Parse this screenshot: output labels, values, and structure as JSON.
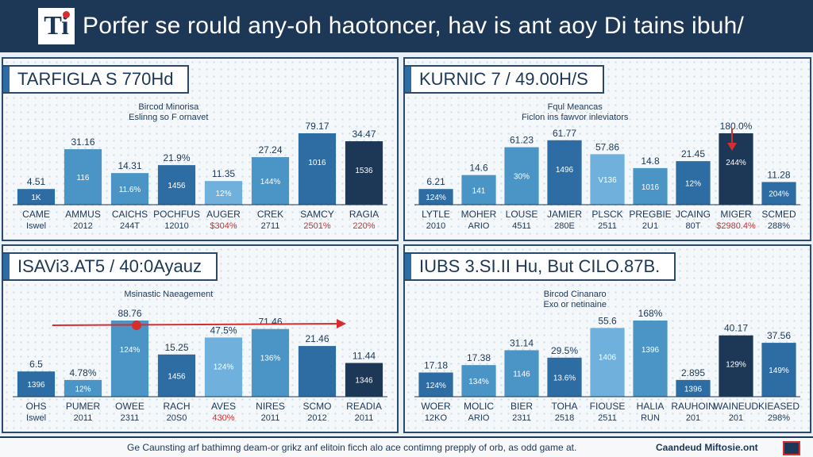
{
  "header": {
    "logo_text": "Ti",
    "title": "Porfer se rould any-oh haotoncer, hav is ant aoy Di tains ibuh/"
  },
  "footer": {
    "caption": "Ge Caunsting arf bathimng deam-or grikz anf elitoin ficch alo ace contimng prepply of orb, as odd game at.",
    "brand": "Caandeud Miftosie.ont"
  },
  "colors": {
    "dark": "#1d3756",
    "bar_mid": "#2e6da4",
    "bar_light": "#4a94c6",
    "bar_sky": "#6fb1dc",
    "red": "#d62d2d"
  },
  "chart_data": [
    {
      "type": "bar",
      "title": "TARFIGLA S 770Hd",
      "annotation": [
        "Bircod Minorisa",
        "Eslinng so F ornavet"
      ],
      "categories": [
        {
          "name": "CAME",
          "sub": "Iswel",
          "value": 4.51,
          "value_label": "4.51",
          "inner": "1K",
          "sub_red": false
        },
        {
          "name": "AMMUS",
          "sub": "2012",
          "value": 31.16,
          "value_label": "31.16",
          "inner": "116",
          "sub_red": false
        },
        {
          "name": "CAICHS",
          "sub": "244T",
          "value": 14.31,
          "value_label": "14.31",
          "inner": "11.6%",
          "sub_red": false
        },
        {
          "name": "POCHFUS",
          "sub": "12010",
          "value": 21.9,
          "value_label": "21.9%",
          "inner": "1456",
          "sub_red": false
        },
        {
          "name": "AUGER",
          "sub": "$304%",
          "value": 11.35,
          "value_label": "11.35",
          "inner": "12%",
          "sub_red": true
        },
        {
          "name": "CREK",
          "sub": "2711",
          "value": 27.24,
          "value_label": "27.24",
          "inner": "144%",
          "sub_red": false
        },
        {
          "name": "SAMCY",
          "sub": "2501%",
          "value": 79.17,
          "value_label": "79.17",
          "inner": "1016",
          "sub_red": true
        },
        {
          "name": "RAGIA",
          "sub": "220%",
          "value": 34.47,
          "value_label": "34.47",
          "inner": "1536",
          "sub_red": true
        }
      ]
    },
    {
      "type": "bar",
      "title": "KURNIC 7 / 49.00H/S",
      "annotation": [
        "Fqul Meancas",
        "Ficlon ins fawvor inleviators"
      ],
      "categories": [
        {
          "name": "LYTLE",
          "sub": "2010",
          "value": 6.21,
          "value_label": "6.21",
          "inner": "124%",
          "sub_red": false
        },
        {
          "name": "MOHER",
          "sub": "ARIO",
          "value": 14.6,
          "value_label": "14.6",
          "inner": "141",
          "sub_red": false
        },
        {
          "name": "LOUSE",
          "sub": "4511",
          "value": 61.23,
          "value_label": "61.23",
          "inner": "30%",
          "sub_red": false
        },
        {
          "name": "JAMIER",
          "sub": "280E",
          "value": 61.77,
          "value_label": "61.77",
          "inner": "1496",
          "sub_red": false
        },
        {
          "name": "PLSCK",
          "sub": "2511",
          "value": 57.86,
          "value_label": "57.86",
          "inner": "V136",
          "sub_red": false
        },
        {
          "name": "PREGBIE",
          "sub": "2U1",
          "value": 14.8,
          "value_label": "14.8",
          "inner": "1016",
          "sub_red": false
        },
        {
          "name": "JCAING",
          "sub": "80T",
          "value": 21.45,
          "value_label": "21.45",
          "inner": "12%",
          "sub_red": false
        },
        {
          "name": "MIGER",
          "sub": "$2980.4%",
          "value": 180.0,
          "value_label": "180.0%",
          "inner": "244%",
          "sub_red": true
        },
        {
          "name": "SCMED",
          "sub": "288%",
          "value": 11.28,
          "value_label": "11.28",
          "inner": "204%",
          "sub_red": false
        }
      ]
    },
    {
      "type": "bar",
      "title": "ISAVi3.AT5 / 40:0Ayauz",
      "annotation": [
        "Msinastic Naeagement"
      ],
      "categories": [
        {
          "name": "OHS",
          "sub": "Iswel",
          "value": 6.5,
          "value_label": "6.5",
          "inner": "1396",
          "sub_red": false
        },
        {
          "name": "PUMER",
          "sub": "2011",
          "value": 4.78,
          "value_label": "4.78%",
          "inner": "12%",
          "sub_red": false
        },
        {
          "name": "OWEE",
          "sub": "2311",
          "value": 88.76,
          "value_label": "88.76",
          "inner": "124%",
          "sub_red": false
        },
        {
          "name": "RACH",
          "sub": "20S0",
          "value": 15.25,
          "value_label": "15.25",
          "inner": "1456",
          "sub_red": false
        },
        {
          "name": "AVES",
          "sub": "430%",
          "value": 47.5,
          "value_label": "47.5%",
          "inner": "124%",
          "sub_red": true
        },
        {
          "name": "NIRES",
          "sub": "2011",
          "value": 71.46,
          "value_label": "71.46",
          "inner": "136%",
          "sub_red": false
        },
        {
          "name": "SCMO",
          "sub": "2012",
          "value": 21.46,
          "value_label": "21.46",
          "inner": "",
          "sub_red": false
        },
        {
          "name": "READIA",
          "sub": "2011",
          "value": 11.44,
          "value_label": "11.44",
          "inner": "1346",
          "sub_red": false
        }
      ]
    },
    {
      "type": "bar",
      "title": "IUBS 3.SI.II Hu, But CILO.87B.",
      "annotation": [
        "Bircod Cinanaro",
        "Exo or netinaine"
      ],
      "categories": [
        {
          "name": "WOER",
          "sub": "12KO",
          "value": 17.18,
          "value_label": "17.18",
          "inner": "124%",
          "sub_red": false
        },
        {
          "name": "MOLIC",
          "sub": "ARIO",
          "value": 17.38,
          "value_label": "17.38",
          "inner": "134%",
          "sub_red": false
        },
        {
          "name": "BIER",
          "sub": "2311",
          "value": 31.14,
          "value_label": "31.14",
          "inner": "1146",
          "sub_red": false
        },
        {
          "name": "TOHA",
          "sub": "2518",
          "value": 29.5,
          "value_label": "29.5%",
          "inner": "13.6%",
          "sub_red": false
        },
        {
          "name": "FIOUSE",
          "sub": "2511",
          "value": 55.6,
          "value_label": "55.6",
          "inner": "1406",
          "sub_red": false
        },
        {
          "name": "HALIA",
          "sub": "RUN",
          "value": 168.0,
          "value_label": "168%",
          "inner": "1396",
          "sub_red": false
        },
        {
          "name": "RAUHOIN",
          "sub": "201",
          "value": 2.895,
          "value_label": "2.895",
          "inner": "1396",
          "sub_red": false
        },
        {
          "name": "WAINEUD",
          "sub": "201",
          "value": 40.17,
          "value_label": "40.17",
          "inner": "129%",
          "sub_red": false
        },
        {
          "name": "KIEASED",
          "sub": "298%",
          "value": 37.56,
          "value_label": "37.56",
          "inner": "149%",
          "sub_red": false
        }
      ]
    }
  ]
}
